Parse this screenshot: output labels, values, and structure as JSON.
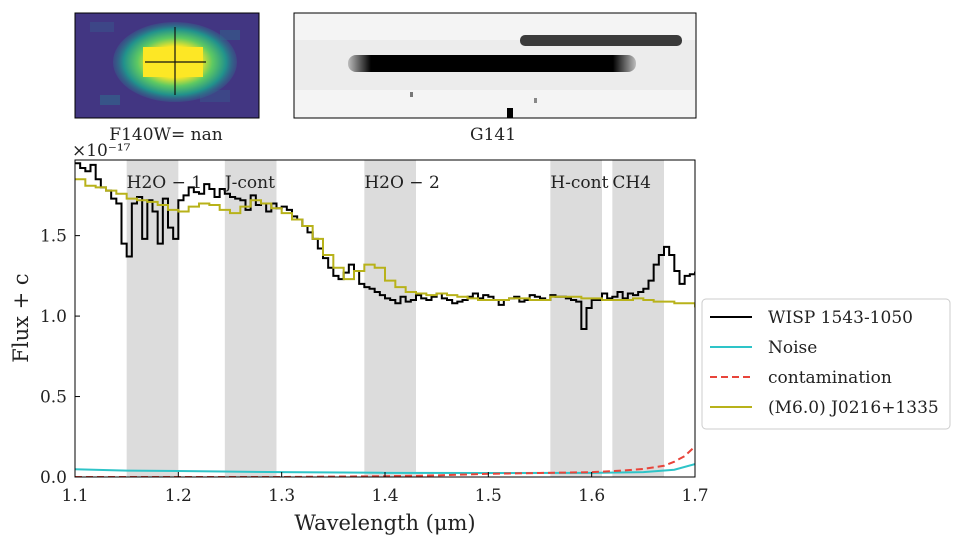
{
  "image_panel": {
    "label": "F140W= nan"
  },
  "spectrum_panel": {
    "label": "G141"
  },
  "chart_data": {
    "type": "line",
    "title": "",
    "xlabel": "Wavelength (μm)",
    "ylabel": "Flux + c",
    "y_offset_text": "×10⁻¹⁷",
    "xlim": [
      1.1,
      1.7
    ],
    "ylim": [
      0.0,
      1.97
    ],
    "x_ticks": [
      1.1,
      1.2,
      1.3,
      1.4,
      1.5,
      1.6,
      1.7
    ],
    "x_tick_labels": [
      "1.1",
      "1.2",
      "1.3",
      "1.4",
      "1.5",
      "1.6",
      "1.7"
    ],
    "y_ticks": [
      0.0,
      0.5,
      1.0,
      1.5
    ],
    "y_tick_labels": [
      "0.0",
      "0.5",
      "1.0",
      "1.5"
    ],
    "grid": false,
    "legend_position": "right",
    "regions": [
      {
        "label": "H2O − 1",
        "x0": 1.15,
        "x1": 1.2
      },
      {
        "label": "J-cont",
        "x0": 1.245,
        "x1": 1.295
      },
      {
        "label": "H2O − 2",
        "x0": 1.38,
        "x1": 1.43
      },
      {
        "label": "H-cont",
        "x0": 1.56,
        "x1": 1.61
      },
      {
        "label": "CH4",
        "x0": 1.62,
        "x1": 1.67
      }
    ],
    "series": [
      {
        "name": "WISP 1543-1050",
        "color": "#000000",
        "style": "step",
        "x": [
          1.1,
          1.105,
          1.11,
          1.115,
          1.12,
          1.125,
          1.13,
          1.135,
          1.14,
          1.145,
          1.15,
          1.155,
          1.16,
          1.165,
          1.17,
          1.175,
          1.18,
          1.185,
          1.19,
          1.195,
          1.2,
          1.205,
          1.21,
          1.215,
          1.22,
          1.225,
          1.23,
          1.235,
          1.24,
          1.245,
          1.25,
          1.255,
          1.26,
          1.265,
          1.27,
          1.275,
          1.28,
          1.285,
          1.29,
          1.295,
          1.3,
          1.305,
          1.31,
          1.315,
          1.32,
          1.325,
          1.33,
          1.335,
          1.34,
          1.345,
          1.35,
          1.355,
          1.36,
          1.365,
          1.37,
          1.375,
          1.38,
          1.385,
          1.39,
          1.395,
          1.4,
          1.405,
          1.41,
          1.415,
          1.42,
          1.425,
          1.43,
          1.435,
          1.44,
          1.445,
          1.45,
          1.455,
          1.46,
          1.465,
          1.47,
          1.475,
          1.48,
          1.485,
          1.49,
          1.495,
          1.5,
          1.505,
          1.51,
          1.515,
          1.52,
          1.525,
          1.53,
          1.535,
          1.54,
          1.545,
          1.55,
          1.555,
          1.56,
          1.565,
          1.57,
          1.575,
          1.58,
          1.585,
          1.59,
          1.595,
          1.6,
          1.605,
          1.61,
          1.615,
          1.62,
          1.625,
          1.63,
          1.635,
          1.64,
          1.645,
          1.65,
          1.655,
          1.66,
          1.665,
          1.67,
          1.675,
          1.68,
          1.685,
          1.69,
          1.695,
          1.7
        ],
        "values": [
          1.95,
          1.92,
          1.9,
          1.94,
          1.85,
          1.8,
          1.78,
          1.73,
          1.7,
          1.45,
          1.37,
          1.7,
          1.74,
          1.48,
          1.72,
          1.65,
          1.45,
          1.73,
          1.55,
          1.48,
          1.72,
          1.75,
          1.8,
          1.77,
          1.76,
          1.82,
          1.79,
          1.74,
          1.79,
          1.76,
          1.74,
          1.73,
          1.72,
          1.66,
          1.75,
          1.69,
          1.7,
          1.65,
          1.7,
          1.67,
          1.68,
          1.66,
          1.62,
          1.6,
          1.56,
          1.52,
          1.48,
          1.42,
          1.36,
          1.3,
          1.25,
          1.23,
          1.27,
          1.32,
          1.28,
          1.2,
          1.18,
          1.17,
          1.15,
          1.13,
          1.11,
          1.1,
          1.08,
          1.12,
          1.09,
          1.1,
          1.13,
          1.11,
          1.1,
          1.12,
          1.14,
          1.11,
          1.1,
          1.08,
          1.09,
          1.1,
          1.12,
          1.14,
          1.11,
          1.13,
          1.12,
          1.1,
          1.07,
          1.1,
          1.11,
          1.12,
          1.09,
          1.1,
          1.13,
          1.12,
          1.11,
          1.1,
          1.13,
          1.12,
          1.12,
          1.11,
          1.1,
          1.09,
          0.92,
          1.05,
          1.1,
          1.1,
          1.14,
          1.11,
          1.12,
          1.15,
          1.11,
          1.14,
          1.13,
          1.15,
          1.17,
          1.22,
          1.32,
          1.38,
          1.43,
          1.38,
          1.28,
          1.2,
          1.25,
          1.26,
          1.27
        ]
      },
      {
        "name": "Noise",
        "color": "#2ec4c8",
        "style": "line",
        "x": [
          1.1,
          1.15,
          1.2,
          1.3,
          1.4,
          1.5,
          1.6,
          1.65,
          1.68,
          1.7
        ],
        "values": [
          0.048,
          0.04,
          0.037,
          0.03,
          0.026,
          0.025,
          0.026,
          0.03,
          0.045,
          0.08
        ]
      },
      {
        "name": "contamination",
        "color": "#e8443a",
        "style": "dashed",
        "x": [
          1.1,
          1.2,
          1.3,
          1.4,
          1.45,
          1.5,
          1.55,
          1.6,
          1.63,
          1.65,
          1.67,
          1.68,
          1.69,
          1.7
        ],
        "values": [
          0.0,
          0.0,
          0.0,
          0.005,
          0.01,
          0.02,
          0.025,
          0.03,
          0.04,
          0.05,
          0.07,
          0.095,
          0.13,
          0.19
        ]
      },
      {
        "name": "(M6.0) J0216+1335",
        "color": "#b8b21a",
        "style": "step",
        "x": [
          1.1,
          1.11,
          1.12,
          1.13,
          1.14,
          1.15,
          1.16,
          1.17,
          1.18,
          1.19,
          1.2,
          1.21,
          1.22,
          1.23,
          1.24,
          1.25,
          1.26,
          1.27,
          1.28,
          1.29,
          1.3,
          1.31,
          1.32,
          1.33,
          1.34,
          1.35,
          1.36,
          1.37,
          1.38,
          1.39,
          1.4,
          1.41,
          1.42,
          1.43,
          1.44,
          1.45,
          1.46,
          1.47,
          1.48,
          1.49,
          1.5,
          1.51,
          1.52,
          1.53,
          1.54,
          1.55,
          1.56,
          1.57,
          1.58,
          1.59,
          1.6,
          1.61,
          1.62,
          1.63,
          1.64,
          1.65,
          1.66,
          1.67,
          1.68,
          1.69,
          1.7
        ],
        "values": [
          1.85,
          1.81,
          1.8,
          1.78,
          1.76,
          1.73,
          1.72,
          1.71,
          1.69,
          1.66,
          1.65,
          1.68,
          1.7,
          1.69,
          1.66,
          1.64,
          1.68,
          1.72,
          1.7,
          1.67,
          1.64,
          1.6,
          1.56,
          1.48,
          1.38,
          1.3,
          1.23,
          1.28,
          1.32,
          1.3,
          1.22,
          1.18,
          1.15,
          1.14,
          1.13,
          1.14,
          1.13,
          1.12,
          1.11,
          1.1,
          1.1,
          1.1,
          1.11,
          1.11,
          1.1,
          1.1,
          1.12,
          1.12,
          1.12,
          1.11,
          1.11,
          1.1,
          1.1,
          1.1,
          1.11,
          1.1,
          1.09,
          1.09,
          1.08,
          1.08,
          1.06
        ]
      }
    ]
  }
}
